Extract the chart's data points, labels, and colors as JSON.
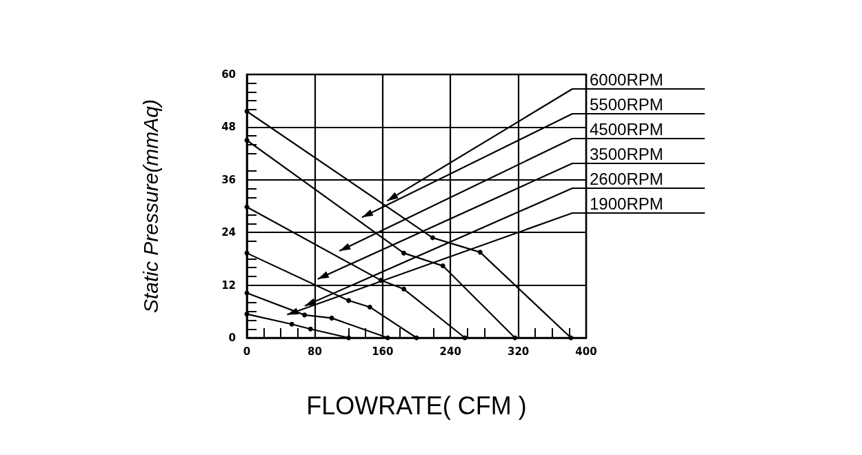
{
  "chart_data": {
    "type": "line",
    "xlabel": "FLOWRATE( CFM )",
    "ylabel": "Static Pressure(mmAq)",
    "xlim": [
      0,
      400
    ],
    "xticks": [
      0,
      80,
      160,
      240,
      320,
      400
    ],
    "ylim": [
      0,
      60
    ],
    "yticks": [
      0,
      12,
      24,
      36,
      48,
      60
    ],
    "grid": true,
    "marker": "circle",
    "line_style": "solid",
    "series": [
      {
        "name": "6000RPM",
        "color": "#000000",
        "x": [
          0,
          219,
          275,
          382
        ],
        "values": [
          51.6,
          22.8,
          19.5,
          0
        ]
      },
      {
        "name": "5500RPM",
        "color": "#000000",
        "x": [
          0,
          185,
          231,
          316
        ],
        "values": [
          45,
          19.3,
          16.4,
          0
        ]
      },
      {
        "name": "4500RPM",
        "color": "#000000",
        "x": [
          0,
          158,
          185,
          257
        ],
        "values": [
          29.8,
          13.1,
          11.1,
          0
        ]
      },
      {
        "name": "3500RPM",
        "color": "#000000",
        "x": [
          0,
          120,
          145,
          200
        ],
        "values": [
          19.3,
          8.5,
          7,
          0
        ]
      },
      {
        "name": "2600RPM",
        "color": "#000000",
        "x": [
          0,
          68,
          100,
          166
        ],
        "values": [
          10.2,
          5.2,
          4.5,
          0
        ]
      },
      {
        "name": "1900RPM",
        "color": "#000000",
        "x": [
          0,
          53,
          75,
          120
        ],
        "values": [
          5.4,
          3.1,
          2,
          0
        ]
      }
    ]
  }
}
